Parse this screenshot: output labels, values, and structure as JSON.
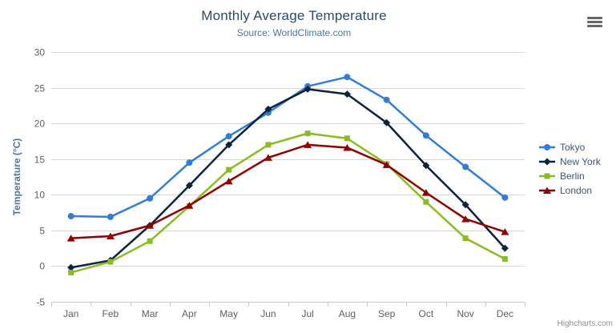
{
  "chart_data": {
    "type": "line",
    "title": "Monthly Average Temperature",
    "subtitle": "Source: WorldClimate.com",
    "categories": [
      "Jan",
      "Feb",
      "Mar",
      "Apr",
      "May",
      "Jun",
      "Jul",
      "Aug",
      "Sep",
      "Oct",
      "Nov",
      "Dec"
    ],
    "xlabel": "",
    "ylabel": "Temperature (°C)",
    "ylim": [
      -5,
      30
    ],
    "ytick_step": 5,
    "grid": true,
    "legend_position": "right",
    "series": [
      {
        "name": "Tokyo",
        "color": "#2f7ed8",
        "marker": "circle",
        "values": [
          7.0,
          6.9,
          9.5,
          14.5,
          18.2,
          21.5,
          25.2,
          26.5,
          23.3,
          18.3,
          13.9,
          9.6
        ]
      },
      {
        "name": "New York",
        "color": "#0d233a",
        "marker": "diamond",
        "values": [
          -0.2,
          0.8,
          5.7,
          11.3,
          17.0,
          22.0,
          24.8,
          24.1,
          20.1,
          14.1,
          8.6,
          2.5
        ]
      },
      {
        "name": "Berlin",
        "color": "#8bbc21",
        "marker": "square",
        "values": [
          -0.9,
          0.6,
          3.5,
          8.4,
          13.5,
          17.0,
          18.6,
          17.9,
          14.3,
          9.0,
          3.9,
          1.0
        ]
      },
      {
        "name": "London",
        "color": "#910000",
        "marker": "triangle",
        "values": [
          3.9,
          4.2,
          5.7,
          8.5,
          11.9,
          15.2,
          17.0,
          16.6,
          14.2,
          10.3,
          6.6,
          4.8
        ]
      }
    ],
    "colors": {
      "title": "#274b6d",
      "subtitle": "#4d759e",
      "axis_labels": "#606060",
      "axis_title": "#4d759e",
      "gridline": "#d8d8d8",
      "axis_line": "#c0d0e0",
      "legend_text": "#3e576f",
      "credits_text": "#909090"
    },
    "credits": "Highcharts.com",
    "export_menu_icon": "hamburger-menu"
  }
}
